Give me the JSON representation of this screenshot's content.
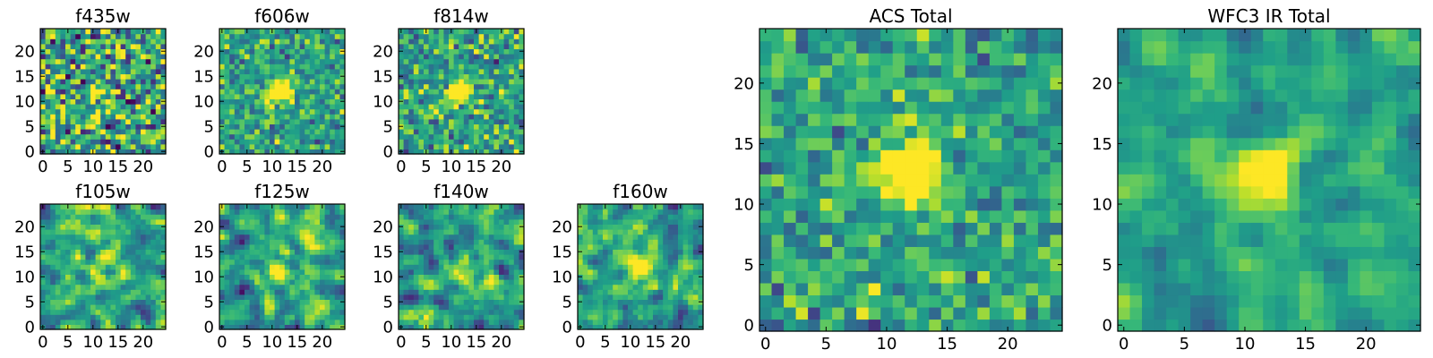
{
  "chart_data": [
    {
      "type": "heatmap",
      "title": "f435w",
      "grid_size": 25,
      "colormap": "viridis",
      "xticks": [
        0,
        5,
        10,
        15,
        20
      ],
      "yticks": [
        0,
        5,
        10,
        15,
        20
      ],
      "xlim": [
        0,
        24
      ],
      "ylim": [
        0,
        24
      ],
      "source": {
        "center": [
          11,
          12
        ],
        "peak": 0.3
      },
      "noise": 0.55,
      "smooth": 0,
      "seed": 11
    },
    {
      "type": "heatmap",
      "title": "f606w",
      "grid_size": 25,
      "colormap": "viridis",
      "xticks": [
        0,
        5,
        10,
        15,
        20
      ],
      "yticks": [
        0,
        5,
        10,
        15,
        20
      ],
      "xlim": [
        0,
        24
      ],
      "ylim": [
        0,
        24
      ],
      "source": {
        "center": [
          11.5,
          12
        ],
        "peak": 0.85
      },
      "noise": 0.3,
      "smooth": 0,
      "seed": 23
    },
    {
      "type": "heatmap",
      "title": "f814w",
      "grid_size": 25,
      "colormap": "viridis",
      "xticks": [
        0,
        5,
        10,
        15,
        20
      ],
      "yticks": [
        0,
        5,
        10,
        15,
        20
      ],
      "xlim": [
        0,
        24
      ],
      "ylim": [
        0,
        24
      ],
      "source": {
        "center": [
          11.5,
          12
        ],
        "peak": 0.8
      },
      "noise": 0.35,
      "smooth": 0,
      "seed": 37
    },
    {
      "type": "heatmap",
      "title": "f105w",
      "grid_size": 25,
      "colormap": "viridis",
      "xticks": [
        0,
        5,
        10,
        15,
        20
      ],
      "yticks": [
        0,
        5,
        10,
        15,
        20
      ],
      "xlim": [
        0,
        24
      ],
      "ylim": [
        0,
        24
      ],
      "source": {
        "center": [
          11.5,
          12
        ],
        "peak": 0.4
      },
      "noise": 0.45,
      "smooth": 1,
      "seed": 41
    },
    {
      "type": "heatmap",
      "title": "f125w",
      "grid_size": 25,
      "colormap": "viridis",
      "xticks": [
        0,
        5,
        10,
        15,
        20
      ],
      "yticks": [
        0,
        5,
        10,
        15,
        20
      ],
      "xlim": [
        0,
        24
      ],
      "ylim": [
        0,
        24
      ],
      "source": {
        "center": [
          11.5,
          11.5
        ],
        "peak": 0.55
      },
      "noise": 0.45,
      "smooth": 1,
      "seed": 53
    },
    {
      "type": "heatmap",
      "title": "f140w",
      "grid_size": 25,
      "colormap": "viridis",
      "xticks": [
        0,
        5,
        10,
        15,
        20
      ],
      "yticks": [
        0,
        5,
        10,
        15,
        20
      ],
      "xlim": [
        0,
        24
      ],
      "ylim": [
        0,
        24
      ],
      "source": {
        "center": [
          12,
          12
        ],
        "peak": 0.5
      },
      "noise": 0.45,
      "smooth": 1,
      "seed": 67
    },
    {
      "type": "heatmap",
      "title": "f160w",
      "grid_size": 25,
      "colormap": "viridis",
      "xticks": [
        0,
        5,
        10,
        15,
        20
      ],
      "yticks": [
        0,
        5,
        10,
        15,
        20
      ],
      "xlim": [
        0,
        24
      ],
      "ylim": [
        0,
        24
      ],
      "source": {
        "center": [
          11.5,
          12
        ],
        "peak": 0.65
      },
      "noise": 0.45,
      "smooth": 1,
      "seed": 79
    },
    {
      "type": "heatmap",
      "title": "ACS Total",
      "grid_size": 25,
      "colormap": "viridis",
      "xticks": [
        0,
        5,
        10,
        15,
        20
      ],
      "yticks": [
        0,
        5,
        10,
        15,
        20
      ],
      "xlim": [
        0,
        24
      ],
      "ylim": [
        0,
        24
      ],
      "source": {
        "center": [
          12,
          12.5
        ],
        "peak": 0.9
      },
      "noise": 0.28,
      "smooth": 0,
      "seed": 97
    },
    {
      "type": "heatmap",
      "title": "WFC3 IR Total",
      "grid_size": 25,
      "colormap": "viridis",
      "xticks": [
        0,
        5,
        10,
        15,
        20
      ],
      "yticks": [
        0,
        5,
        10,
        15,
        20
      ],
      "xlim": [
        0,
        24
      ],
      "ylim": [
        0,
        24
      ],
      "source": {
        "center": [
          12,
          12.5
        ],
        "peak": 0.85
      },
      "noise": 0.28,
      "smooth": 1,
      "seed": 113
    }
  ]
}
